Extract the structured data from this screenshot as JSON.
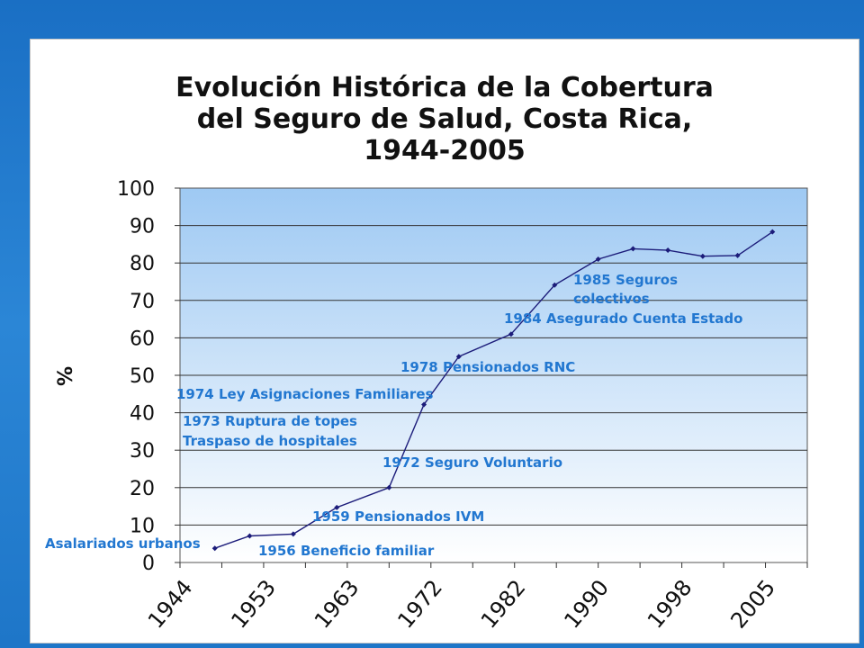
{
  "colors": {
    "background": "#1e76c8",
    "plot_top": "#9ec9f3",
    "plot_bottom": "#ffffff",
    "line": "#1c1c7a",
    "annotation": "#2277d0"
  },
  "chart_data": {
    "type": "line",
    "title_lines": [
      "Evolución Histórica de la Cobertura",
      "del Seguro de Salud, Costa Rica,",
      "1944-2005"
    ],
    "ylabel": "%",
    "ylim": [
      0,
      100
    ],
    "yticks": [
      0,
      10,
      20,
      30,
      40,
      50,
      60,
      70,
      80,
      90,
      100
    ],
    "x_labels": [
      "1944",
      "1953",
      "1963",
      "1972",
      "1982",
      "1990",
      "1998",
      "2005"
    ],
    "x": [
      1946,
      1950,
      1955,
      1960,
      1966,
      1970,
      1974,
      1980,
      1985,
      1990,
      1994,
      1998,
      2002,
      2006,
      2010
    ],
    "values": [
      3.8,
      7.1,
      7.6,
      14.7,
      20,
      42.2,
      55,
      61,
      74.1,
      81,
      83.8,
      83.4,
      81.8,
      82,
      88.3
    ],
    "grid": true,
    "legend": "none",
    "annotations": [
      "Asalariados urbanos",
      "1956 Beneficio familiar",
      "1959 Pensionados IVM",
      "1972  Seguro Voluntario",
      "1973 Ruptura de topes",
      "Traspaso de hospitales",
      "1974 Ley Asignaciones Familiares",
      "1978 Pensionados RNC",
      "1984 Asegurado Cuenta Estado",
      "1985 Seguros",
      "colectivos"
    ]
  }
}
